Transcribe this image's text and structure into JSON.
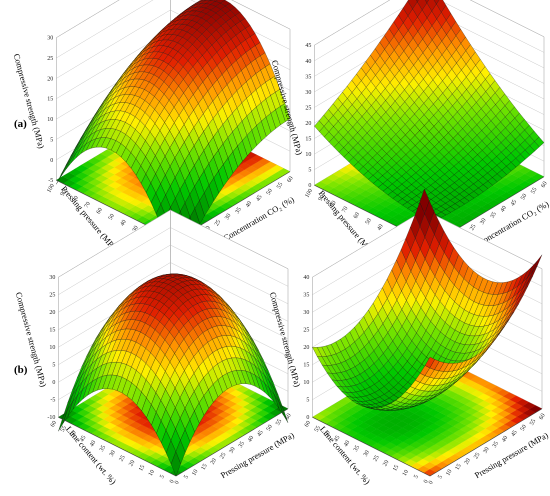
{
  "figure": {
    "row_labels": [
      "(a)",
      "(b)"
    ]
  },
  "chart_data": [
    {
      "type": "surface3d",
      "panel": "(a)",
      "position": "top-left",
      "xlabel": "Pressing pressure (MPa)",
      "ylabel": "Concentration CO₂ (%)",
      "zlabel": "Compressive strength (MPa)",
      "x_ticks": [
        "5",
        "10",
        "15",
        "20",
        "25",
        "30",
        "35",
        "40",
        "45",
        "50",
        "55",
        "60"
      ],
      "y_ticks": [
        "0",
        "10",
        "20",
        "30",
        "40",
        "50",
        "60",
        "70",
        "80",
        "90",
        "100"
      ],
      "z_ticks": [
        "-5",
        "0",
        "5",
        "10",
        "15",
        "20",
        "25",
        "30"
      ],
      "zlim": [
        -5,
        30
      ],
      "model": {
        "c": 24,
        "ax": 10,
        "ay": 3,
        "axx": -5,
        "ayy": -18,
        "axy": 0
      },
      "floor_contour": true
    },
    {
      "type": "surface3d",
      "panel": "(a)",
      "position": "top-right",
      "xlabel": "Pressing pressure (MPa)",
      "ylabel": "Concentration CO₂ (%)",
      "zlabel": "Compressive strength (MPa)",
      "x_ticks": [
        "5",
        "10",
        "15",
        "20",
        "25",
        "30",
        "35",
        "40",
        "45",
        "50",
        "55",
        "60"
      ],
      "y_ticks": [
        "0",
        "10",
        "20",
        "30",
        "40",
        "50",
        "60",
        "70",
        "80",
        "90",
        "100"
      ],
      "z_ticks": [
        "0",
        "5",
        "10",
        "15",
        "20",
        "25",
        "30",
        "35",
        "40",
        "45"
      ],
      "zlim": [
        0,
        45
      ],
      "model": {
        "c": 16,
        "ax": 8,
        "ay": 12,
        "axx": 2,
        "ayy": 3,
        "axy": 6
      },
      "floor_contour": true
    },
    {
      "type": "surface3d",
      "panel": "(b)",
      "position": "bottom-left",
      "xlabel": "Lime content (wt. %)",
      "ylabel": "Pressing pressure (MPa)",
      "zlabel": "Compressive strength (MPa)",
      "x_ticks": [
        "0",
        "5",
        "10",
        "15",
        "20",
        "25",
        "30",
        "35",
        "40",
        "45",
        "50",
        "55",
        "60"
      ],
      "y_ticks": [
        "0",
        "5",
        "10",
        "15",
        "20",
        "25",
        "30",
        "35",
        "40",
        "45",
        "50",
        "55",
        "60"
      ],
      "z_ticks": [
        "-10",
        "-5",
        "0",
        "5",
        "10",
        "15",
        "20",
        "25",
        "30"
      ],
      "zlim": [
        -10,
        30
      ],
      "model": {
        "c": 26,
        "ax": 2,
        "ay": 2,
        "axx": -18,
        "ayy": -18,
        "axy": 4
      },
      "floor_contour": true
    },
    {
      "type": "surface3d",
      "panel": "(b)",
      "position": "bottom-right",
      "xlabel": "Lime content (wt. %)",
      "ylabel": "Pressing pressure (MPa)",
      "zlabel": "Compressive strength (MPa)",
      "x_ticks": [
        "0",
        "5",
        "10",
        "15",
        "20",
        "25",
        "30",
        "35",
        "40",
        "45",
        "50",
        "55",
        "60"
      ],
      "y_ticks": [
        "0",
        "5",
        "10",
        "15",
        "20",
        "25",
        "30",
        "35",
        "40",
        "45",
        "50",
        "55",
        "60"
      ],
      "z_ticks": [
        "0",
        "5",
        "10",
        "15",
        "20",
        "25",
        "30",
        "35",
        "40"
      ],
      "zlim": [
        0,
        40
      ],
      "model": {
        "c": 8,
        "ax": 9,
        "ay": -3,
        "axx": 12,
        "ayy": 16,
        "axy": 4
      },
      "floor_contour": true
    }
  ]
}
